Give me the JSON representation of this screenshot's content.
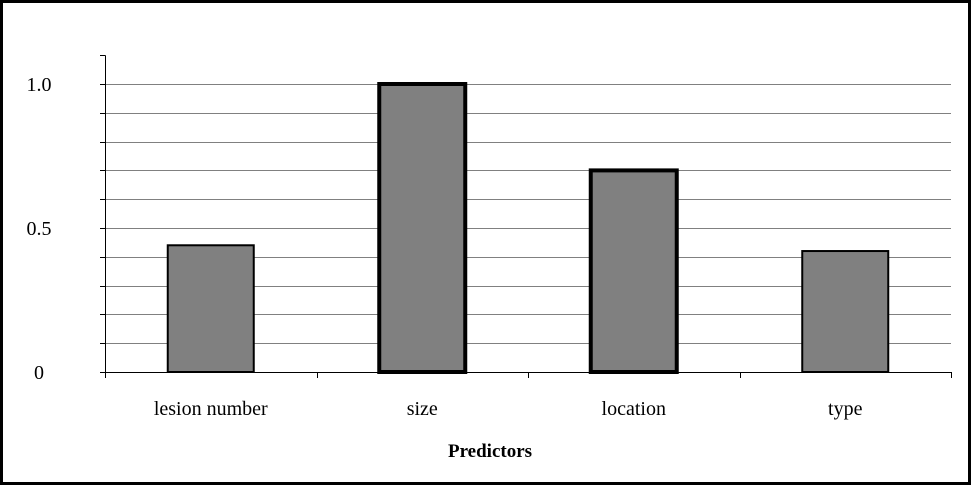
{
  "chart_data": {
    "type": "bar",
    "title": "",
    "xlabel": "Predictors",
    "ylabel": "",
    "categories": [
      "lesion number",
      "size",
      "location",
      "type"
    ],
    "values": [
      0.44,
      1.0,
      0.7,
      0.42
    ],
    "bar_emphasis": [
      false,
      true,
      true,
      false
    ],
    "ylim": [
      0,
      1.1
    ],
    "yticks": [
      {
        "value": 0,
        "label": "0"
      },
      {
        "value": 0.5,
        "label": "0.5"
      },
      {
        "value": 1.0,
        "label": "1.0"
      }
    ],
    "gridlines": [
      0.1,
      0.2,
      0.3,
      0.4,
      0.5,
      0.6,
      0.7,
      0.8,
      0.9,
      1.0
    ],
    "grid": true,
    "legend": "none",
    "colors": {
      "bar_fill": "#808080",
      "bar_stroke": "#000000",
      "grid": "#808080",
      "axis": "#000000"
    }
  }
}
